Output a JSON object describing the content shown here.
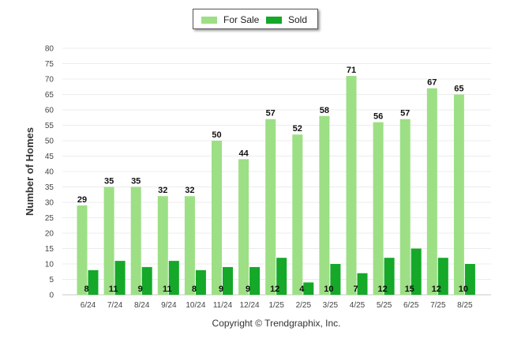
{
  "chart_data": {
    "type": "bar",
    "categories": [
      "6/24",
      "7/24",
      "8/24",
      "9/24",
      "10/24",
      "11/24",
      "12/24",
      "1/25",
      "2/25",
      "3/25",
      "4/25",
      "5/25",
      "6/25",
      "7/25",
      "8/25"
    ],
    "series": [
      {
        "name": "For Sale",
        "color": "#9ddf85",
        "values": [
          29,
          35,
          35,
          32,
          32,
          50,
          44,
          57,
          52,
          58,
          71,
          56,
          57,
          67,
          65
        ]
      },
      {
        "name": "Sold",
        "color": "#15a829",
        "values": [
          8,
          11,
          9,
          11,
          8,
          9,
          9,
          12,
          4,
          10,
          7,
          12,
          15,
          12,
          10
        ]
      }
    ],
    "ylabel": "Number of Homes",
    "xlabel": "",
    "ylim": [
      0,
      80
    ],
    "yticks": [
      0,
      5,
      10,
      15,
      20,
      25,
      30,
      35,
      40,
      45,
      50,
      55,
      60,
      65,
      70,
      75,
      80
    ],
    "grid": true,
    "legend_position": "top-center"
  },
  "footer": {
    "copyright": "Copyright © Trendgraphix, Inc."
  }
}
